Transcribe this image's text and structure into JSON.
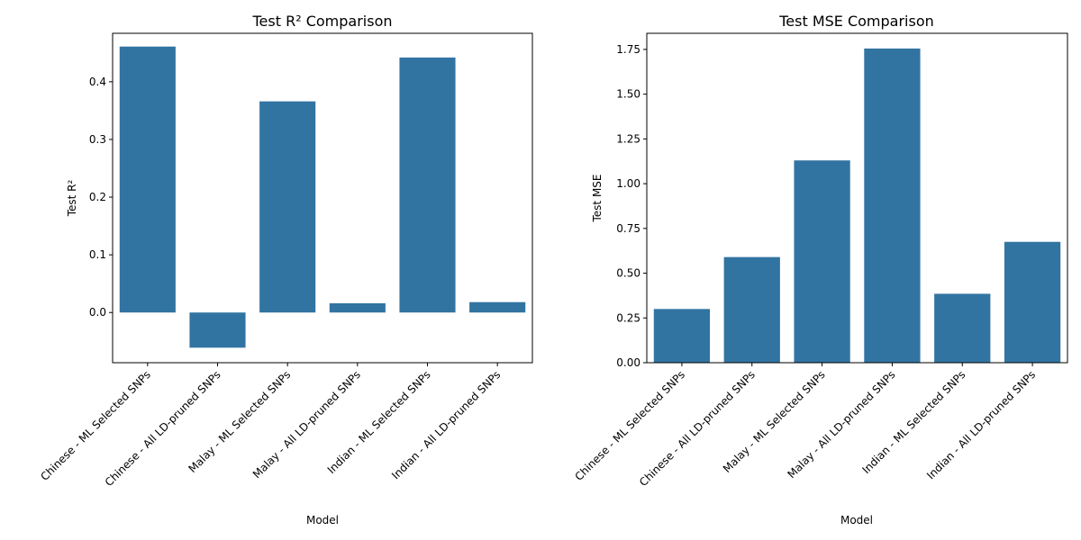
{
  "chart_data": [
    {
      "type": "bar",
      "title": "Test R² Comparison",
      "xlabel": "Model",
      "ylabel": "Test R²",
      "categories": [
        "Chinese - ML Selected SNPs",
        "Chinese - All LD-pruned SNPs",
        "Malay - ML Selected SNPs",
        "Malay - All LD-pruned SNPs",
        "Indian - ML Selected SNPs",
        "Indian - All LD-pruned SNPs"
      ],
      "values": [
        0.461,
        -0.061,
        0.366,
        0.016,
        0.442,
        0.018
      ],
      "ylim": [
        -0.087,
        0.484
      ],
      "yticks": [
        0.0,
        0.1,
        0.2,
        0.3,
        0.4
      ],
      "ytick_labels": [
        "0.0",
        "0.1",
        "0.2",
        "0.3",
        "0.4"
      ],
      "color": "#3274a1",
      "grid": false,
      "legend": "none"
    },
    {
      "type": "bar",
      "title": "Test MSE Comparison",
      "xlabel": "Model",
      "ylabel": "Test MSE",
      "categories": [
        "Chinese - ML Selected SNPs",
        "Chinese - All LD-pruned SNPs",
        "Malay - ML Selected SNPs",
        "Malay - All LD-pruned SNPs",
        "Indian - ML Selected SNPs",
        "Indian - All LD-pruned SNPs"
      ],
      "values": [
        0.3,
        0.59,
        1.13,
        1.755,
        0.385,
        0.675
      ],
      "ylim": [
        0,
        1.84
      ],
      "yticks": [
        0.0,
        0.25,
        0.5,
        0.75,
        1.0,
        1.25,
        1.5,
        1.75
      ],
      "ytick_labels": [
        "0.00",
        "0.25",
        "0.50",
        "0.75",
        "1.00",
        "1.25",
        "1.50",
        "1.75"
      ],
      "color": "#3274a1",
      "grid": false,
      "legend": "none"
    }
  ]
}
